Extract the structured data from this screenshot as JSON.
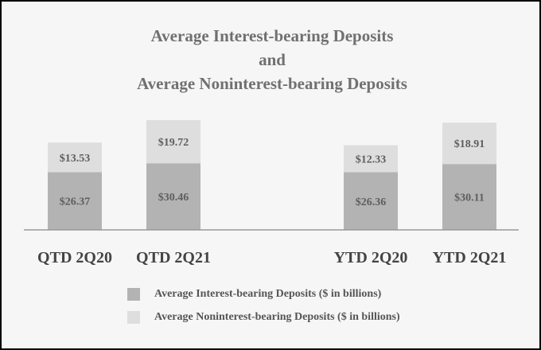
{
  "chart_data": {
    "type": "bar",
    "stacked": true,
    "title_lines": [
      "Average Interest-bearing Deposits",
      "and",
      "Average Noninterest-bearing Deposits"
    ],
    "categories": [
      "QTD 2Q20",
      "QTD 2Q21",
      "YTD 2Q20",
      "YTD 2Q21"
    ],
    "series": [
      {
        "name": "Average Interest-bearing Deposits ($ in billions)",
        "values": [
          26.37,
          30.46,
          26.36,
          30.11
        ],
        "labels": [
          "$26.37",
          "$30.46",
          "$26.36",
          "$30.11"
        ],
        "color": "#b3b3b3"
      },
      {
        "name": "Average Noninterest-bearing Deposits ($ in billions)",
        "values": [
          13.53,
          19.72,
          12.33,
          18.91
        ],
        "labels": [
          "$13.53",
          "$19.72",
          "$12.33",
          "$18.91"
        ],
        "color": "#dedede"
      }
    ],
    "ylim": [
      0,
      50.18
    ],
    "grid": false,
    "legend_position": "bottom"
  }
}
